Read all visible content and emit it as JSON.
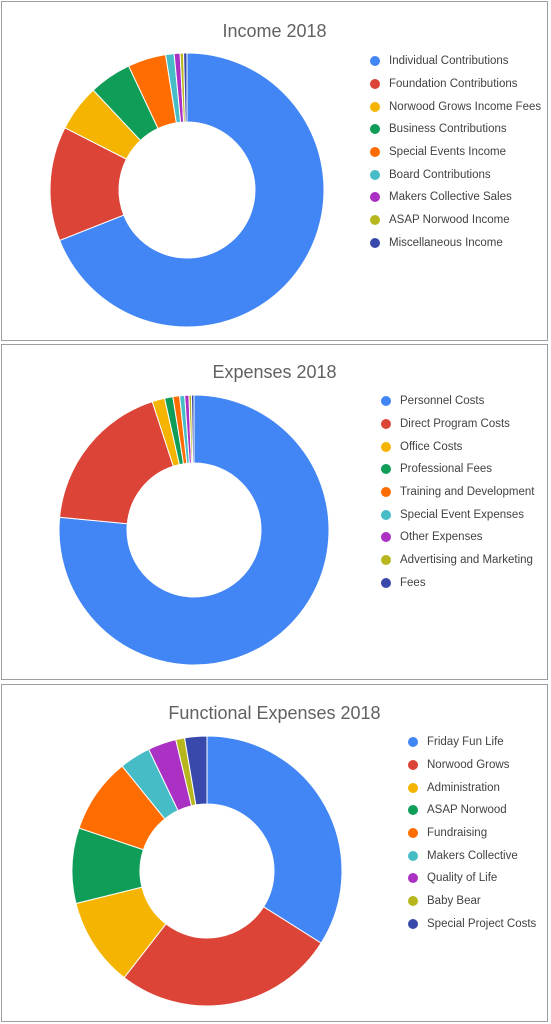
{
  "colors": [
    "#4285f4",
    "#db4437",
    "#f4b400",
    "#0f9d58",
    "#ff6d00",
    "#46bdc6",
    "#ab30c4",
    "#b7b71d",
    "#3949ab"
  ],
  "chart_data": [
    {
      "type": "pie",
      "title": "Income 2018",
      "categories": [
        "Individual Contributions",
        "Foundation Contributions",
        "Norwood Grows Income Fees",
        "Business Contributions",
        "Special Events Income",
        "Board Contributions",
        "Makers Collective Sales",
        "ASAP Norwood Income",
        "Miscellaneous Income"
      ],
      "values": [
        69.0,
        13.5,
        5.5,
        5.0,
        4.5,
        1.0,
        0.7,
        0.4,
        0.4
      ],
      "legend": "right"
    },
    {
      "type": "pie",
      "title": "Expenses 2018",
      "categories": [
        "Personnel Costs",
        "Direct Program Costs",
        "Office Costs",
        "Professional Fees",
        "Training and Development",
        "Special Event Expenses",
        "Other Expenses",
        "Advertising and Marketing",
        "Fees"
      ],
      "values": [
        76.5,
        18.5,
        1.5,
        1.0,
        0.8,
        0.6,
        0.5,
        0.3,
        0.3
      ],
      "legend": "right"
    },
    {
      "type": "pie",
      "title": "Functional Expenses 2018",
      "categories": [
        "Friday Fun Life",
        "Norwood Grows",
        "Administration",
        "ASAP Norwood",
        "Fundraising",
        "Makers Collective",
        "Quality of Life",
        "Baby Bear",
        "Special Project Costs"
      ],
      "values": [
        32.0,
        25.0,
        10.0,
        8.5,
        8.5,
        3.5,
        3.2,
        1.0,
        2.5
      ],
      "legend": "right"
    }
  ]
}
